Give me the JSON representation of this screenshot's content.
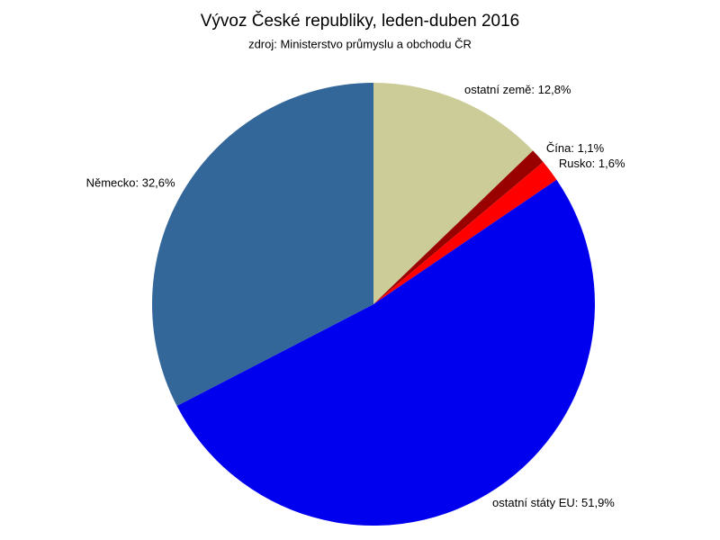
{
  "chart_data": {
    "type": "pie",
    "title": "Vývoz České republiky, leden-duben 2016",
    "subtitle": "zdroj: Ministerstvo průmyslu a obchodu ČR",
    "labels": [
      "ostatní země: 12,8%",
      "Čína: 1,1%",
      "Rusko: 1,6%",
      "ostatní státy EU: 51,9%",
      "Německo: 32,6%"
    ],
    "values": [
      12.8,
      1.1,
      1.6,
      51.9,
      32.6
    ],
    "colors": [
      "#cccc99",
      "#990000",
      "#ff0000",
      "#0000ee",
      "#336699"
    ]
  }
}
